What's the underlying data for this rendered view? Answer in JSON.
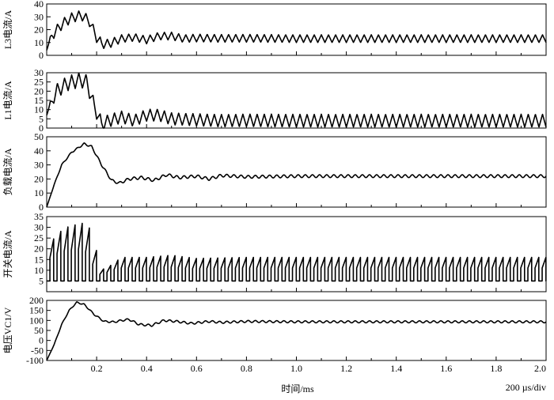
{
  "chart_data": {
    "type": "line",
    "x_label": "时间/ms",
    "time_scale": "200 µs/div",
    "x_range": [
      0,
      2.0
    ],
    "x_ticks": [
      "0.2",
      "0.4",
      "0.6",
      "0.8",
      "1.0",
      "1.2",
      "1.4",
      "1.6",
      "1.8",
      "2.0"
    ],
    "x_tick_values": [
      0.2,
      0.4,
      0.6,
      0.8,
      1.0,
      1.2,
      1.4,
      1.6,
      1.8,
      2.0
    ],
    "panels": [
      {
        "key": "l3",
        "ylabel": "L3电流/A",
        "ylim": [
          0,
          40
        ],
        "yticks": [
          0,
          10,
          20,
          30,
          40
        ],
        "waveform": "triangular ripple",
        "ripple_frequency_khz": 35,
        "points": [
          [
            0,
            5
          ],
          [
            0.02,
            15
          ],
          [
            0.05,
            22
          ],
          [
            0.08,
            27
          ],
          [
            0.11,
            30
          ],
          [
            0.14,
            31
          ],
          [
            0.17,
            27
          ],
          [
            0.2,
            14
          ],
          [
            0.22,
            9
          ],
          [
            0.25,
            9
          ],
          [
            0.3,
            13
          ],
          [
            0.35,
            14
          ],
          [
            0.4,
            12
          ],
          [
            0.45,
            15
          ],
          [
            0.5,
            15
          ],
          [
            0.55,
            13
          ],
          [
            0.6,
            13.5
          ],
          [
            0.7,
            13.2
          ],
          [
            0.8,
            13.3
          ],
          [
            1.0,
            13
          ],
          [
            2.0,
            13
          ]
        ],
        "ripple_amplitude": [
          [
            0,
            1
          ],
          [
            0.03,
            4
          ],
          [
            0.2,
            4
          ],
          [
            0.3,
            3
          ],
          [
            1.0,
            3
          ],
          [
            2.0,
            3
          ]
        ]
      },
      {
        "key": "l1",
        "ylabel": "L1电流/A",
        "ylim": [
          0,
          30
        ],
        "yticks": [
          0,
          5,
          10,
          15,
          20,
          25,
          30
        ],
        "waveform": "triangular ripple",
        "ripple_frequency_khz": 35,
        "floor": 0,
        "points": [
          [
            0,
            8
          ],
          [
            0.04,
            20
          ],
          [
            0.08,
            24
          ],
          [
            0.13,
            26
          ],
          [
            0.16,
            25
          ],
          [
            0.19,
            12
          ],
          [
            0.22,
            2
          ],
          [
            0.25,
            4
          ],
          [
            0.3,
            6
          ],
          [
            0.35,
            4
          ],
          [
            0.4,
            7
          ],
          [
            0.45,
            7
          ],
          [
            0.5,
            5
          ],
          [
            0.6,
            4.5
          ],
          [
            0.7,
            4
          ],
          [
            0.8,
            4.2
          ],
          [
            1.0,
            4
          ],
          [
            2.0,
            4
          ]
        ],
        "ripple_amplitude": [
          [
            0,
            1
          ],
          [
            0.04,
            4
          ],
          [
            0.18,
            4
          ],
          [
            0.3,
            3.2
          ],
          [
            1.0,
            3.5
          ],
          [
            2.0,
            3.5
          ]
        ]
      },
      {
        "key": "load",
        "ylabel": "负载电流/A",
        "ylim": [
          0,
          50
        ],
        "yticks": [
          0,
          10,
          20,
          30,
          40,
          50
        ],
        "waveform": "smooth with small ripple",
        "ripple_frequency_khz": 35,
        "points": [
          [
            0,
            0
          ],
          [
            0.03,
            16
          ],
          [
            0.06,
            30
          ],
          [
            0.1,
            39
          ],
          [
            0.15,
            45
          ],
          [
            0.18,
            43
          ],
          [
            0.22,
            30
          ],
          [
            0.26,
            19
          ],
          [
            0.29,
            17
          ],
          [
            0.33,
            20
          ],
          [
            0.38,
            21
          ],
          [
            0.43,
            19
          ],
          [
            0.48,
            23
          ],
          [
            0.53,
            21
          ],
          [
            0.6,
            22
          ],
          [
            0.65,
            20
          ],
          [
            0.7,
            22.5
          ],
          [
            0.8,
            21.5
          ],
          [
            1.0,
            22
          ],
          [
            2.0,
            22
          ]
        ],
        "ripple_amplitude": [
          [
            0,
            0
          ],
          [
            0.05,
            0.4
          ],
          [
            0.25,
            0.8
          ],
          [
            0.35,
            1
          ],
          [
            2.0,
            1
          ]
        ]
      },
      {
        "key": "switch",
        "ylabel": "开关电流/A",
        "ylim": [
          0,
          35
        ],
        "yticks": [
          5,
          10,
          15,
          20,
          25,
          30,
          35
        ],
        "waveform": "pulsed sawtooth, baseline 5 A",
        "ripple_frequency_khz": 35,
        "baseline": 5,
        "peaks": [
          [
            0,
            5
          ],
          [
            0.03,
            26
          ],
          [
            0.08,
            30
          ],
          [
            0.14,
            32
          ],
          [
            0.17,
            30
          ],
          [
            0.2,
            19
          ],
          [
            0.23,
            10
          ],
          [
            0.3,
            16
          ],
          [
            0.4,
            16
          ],
          [
            0.5,
            17
          ],
          [
            0.6,
            15.5
          ],
          [
            0.8,
            16
          ],
          [
            2.0,
            16
          ]
        ]
      },
      {
        "key": "vc1",
        "ylabel": "电压VC1/V",
        "ylim": [
          -100,
          200
        ],
        "yticks": [
          -100,
          -50,
          0,
          50,
          100,
          150,
          200
        ],
        "waveform": "smooth with small ripple",
        "ripple_frequency_khz": 35,
        "points": [
          [
            0,
            -100
          ],
          [
            0.03,
            -20
          ],
          [
            0.06,
            80
          ],
          [
            0.09,
            150
          ],
          [
            0.12,
            190
          ],
          [
            0.15,
            180
          ],
          [
            0.19,
            130
          ],
          [
            0.23,
            95
          ],
          [
            0.27,
            92
          ],
          [
            0.3,
            100
          ],
          [
            0.33,
            105
          ],
          [
            0.37,
            80
          ],
          [
            0.42,
            75
          ],
          [
            0.47,
            100
          ],
          [
            0.52,
            95
          ],
          [
            0.58,
            85
          ],
          [
            0.65,
            95
          ],
          [
            0.7,
            90
          ],
          [
            0.8,
            95
          ],
          [
            1.0,
            93
          ],
          [
            2.0,
            93
          ]
        ],
        "ripple_amplitude": [
          [
            0,
            0
          ],
          [
            0.05,
            2
          ],
          [
            0.25,
            4
          ],
          [
            0.4,
            5
          ],
          [
            2.0,
            5
          ]
        ]
      }
    ]
  }
}
